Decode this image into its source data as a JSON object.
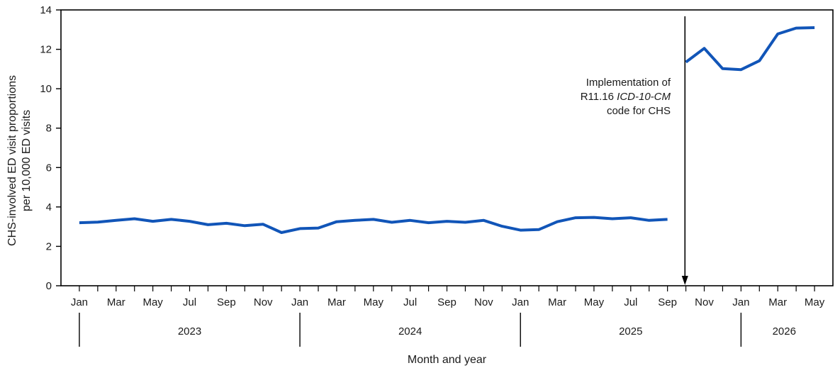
{
  "chart_data": {
    "type": "line",
    "xlabel": "Month and year",
    "ylabel_lines": [
      "CHS-involved ED visit proportions",
      "per 10,000 ED visits"
    ],
    "ylim": [
      0,
      14
    ],
    "yticks": [
      0,
      2,
      4,
      6,
      8,
      10,
      12,
      14
    ],
    "xlim": [
      -1,
      41
    ],
    "x_tick_labels": [
      {
        "i": 0,
        "label": "Jan"
      },
      {
        "i": 2,
        "label": "Mar"
      },
      {
        "i": 4,
        "label": "May"
      },
      {
        "i": 6,
        "label": "Jul"
      },
      {
        "i": 8,
        "label": "Sep"
      },
      {
        "i": 10,
        "label": "Nov"
      },
      {
        "i": 12,
        "label": "Jan"
      },
      {
        "i": 14,
        "label": "Mar"
      },
      {
        "i": 16,
        "label": "May"
      },
      {
        "i": 18,
        "label": "Jul"
      },
      {
        "i": 20,
        "label": "Sep"
      },
      {
        "i": 22,
        "label": "Nov"
      },
      {
        "i": 24,
        "label": "Jan"
      },
      {
        "i": 26,
        "label": "Mar"
      },
      {
        "i": 28,
        "label": "May"
      },
      {
        "i": 30,
        "label": "Jul"
      },
      {
        "i": 32,
        "label": "Sep"
      },
      {
        "i": 34,
        "label": "Nov"
      },
      {
        "i": 36,
        "label": "Jan"
      },
      {
        "i": 38,
        "label": "Mar"
      },
      {
        "i": 40,
        "label": "May"
      }
    ],
    "year_groups": [
      {
        "label": "2023",
        "start": 0,
        "end": 12
      },
      {
        "label": "2024",
        "start": 12,
        "end": 24
      },
      {
        "label": "2025",
        "start": 24,
        "end": 36
      },
      {
        "label": "2026",
        "start": 36,
        "end": 41
      }
    ],
    "series": [
      {
        "color": "#1155b8",
        "segments": [
          {
            "start": "2023-01",
            "values": [
              3.2,
              3.23,
              3.32,
              3.4,
              3.27,
              3.37,
              3.27,
              3.1,
              3.17,
              3.05,
              3.12,
              2.7,
              2.9,
              2.93,
              3.25,
              3.32,
              3.37,
              3.22,
              3.32,
              3.2,
              3.27,
              3.22,
              3.32,
              3.02,
              2.82,
              2.85,
              3.25,
              3.45,
              3.47,
              3.4,
              3.45,
              3.32,
              3.37
            ]
          },
          {
            "start": "2025-10",
            "values": [
              11.35,
              12.05,
              11.02,
              10.97,
              11.42,
              12.78,
              13.08,
              13.1
            ]
          }
        ]
      }
    ],
    "annotation": {
      "lines": [
        "Implementation of",
        "R11.16 |ICD-10-CM|",
        "code for CHS"
      ],
      "arrow_x": 32.95
    }
  }
}
